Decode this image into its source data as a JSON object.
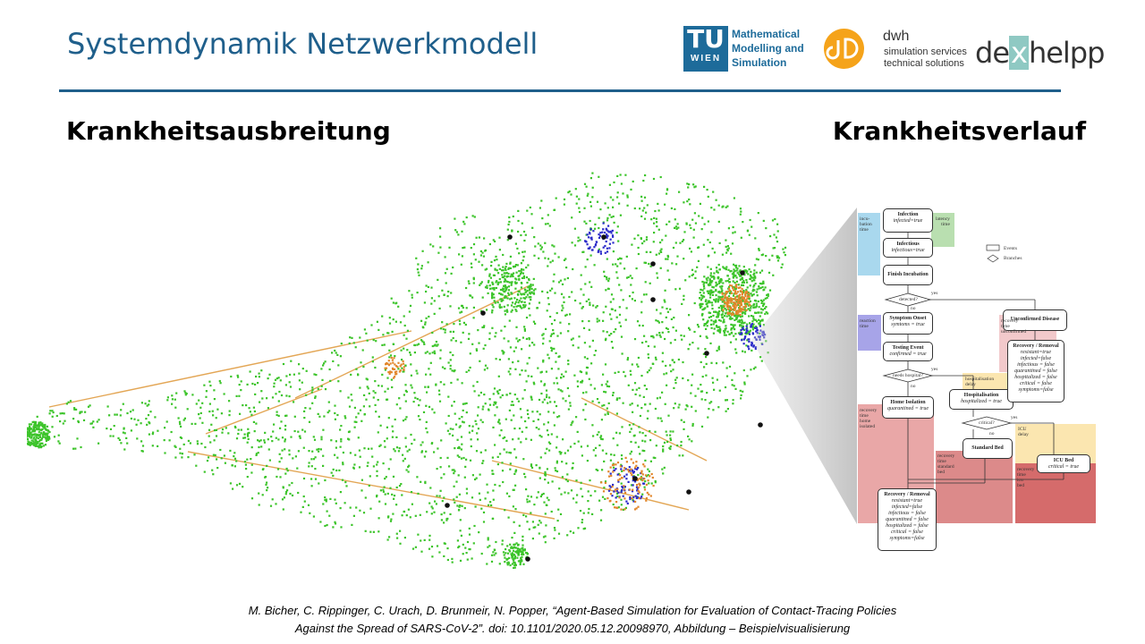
{
  "header": {
    "title": "Systemdynamik Netzwerkmodell",
    "subtitle_left": "Krankheitsausbreitung",
    "subtitle_right": "Krankheitsverlauf"
  },
  "logos": {
    "tu_letters": "TU",
    "tu_wien": "WIEN",
    "tu_dept_line1": "Mathematical",
    "tu_dept_line2": "Modelling and",
    "tu_dept_line3": "Simulation",
    "dwh_name": "dwh",
    "dwh_line1": "simulation services",
    "dwh_line2": "technical solutions",
    "dex_a": "de",
    "dex_x": "x",
    "dex_b": "helpp",
    "colors": {
      "tu_blue": "#1d6b9a",
      "dwh_orange": "#f5a31a",
      "dex_teal": "#8fc9c3"
    }
  },
  "citation": {
    "line1": "M. Bicher, C. Rippinger, C. Urach, D. Brunmeir, N. Popper, “Agent-Based Simulation for Evaluation of Contact-Tracing Policies",
    "line2": "Against the Spread of SARS-CoV-2”. doi: 10.1101/2020.05.12.20098970,  Abbildung – Beispielvisualisierung"
  },
  "flowchart": {
    "legend": {
      "events": "Events",
      "branches": "Branches"
    },
    "nodes": {
      "infection": {
        "title": "Infection",
        "state": "infected=true"
      },
      "infectious": {
        "title": "Infectious",
        "state": "infectious=true"
      },
      "finish_incubation": {
        "title": "Finish Incubation"
      },
      "detected": {
        "title": "detected?"
      },
      "symptom_onset": {
        "title": "Symptom Onset",
        "state": "symtoms = true"
      },
      "testing_event": {
        "title": "Testing Event",
        "state": "confirmed = true"
      },
      "needs_hospital": {
        "title": "needs hospital?"
      },
      "home_isolation": {
        "title": "Home Isolation",
        "state": "quarantined = true"
      },
      "hospitalisation": {
        "title": "Hospitalisation",
        "state": "hospitalized = true"
      },
      "critical": {
        "title": "critical?"
      },
      "standard_bed": {
        "title": "Standard Bed"
      },
      "icu_bed": {
        "title": "ICU Bed",
        "state": "critical = true"
      },
      "unconfirmed": {
        "title": "Unconfirmed Disease"
      },
      "recovery_upper": {
        "title": "Recovery / Removal",
        "lines": [
          "resistant=true",
          "infected=false",
          "infectious = false",
          "quarantined = false",
          "hospitalized = false",
          "critical = false",
          "symptoms=false"
        ]
      },
      "recovery_lower": {
        "title": "Recovery / Removal",
        "lines": [
          "resistant=true",
          "infected=false",
          "infectious = false",
          "quarantined = false",
          "hospitalized = false",
          "critical = false",
          "symptoms=false"
        ]
      }
    },
    "labels": {
      "yes": "yes",
      "no": "no",
      "incubation_time": "incu-\nbation\ntime",
      "latency_time": "latency\ntime",
      "reaction_time": "reaction\ntime",
      "recovery_unconfirmed": "recovery\ntime\nunconfirmed",
      "hospitalisation_delay": "hospitalisation\ndelay",
      "icu_delay": "ICU\ndelay",
      "recovery_home": "recovery\ntime\nhome\nisolated",
      "recovery_standard": "recovery\ntime\nstandard\nbed",
      "recovery_icu": "recovery\ntime\nicu\nbed"
    },
    "zone_colors": {
      "blue": "#a9d8ee",
      "green": "#b9dfb0",
      "purple": "#a7a4e8",
      "pink": "#f2c9cb",
      "yellow": "#fbe6b0",
      "red_light": "#e9a7a7",
      "red_mid": "#dc8a8a",
      "red_dark": "#d56b6b"
    }
  },
  "map": {
    "colors": {
      "healthy": "#3cc42a",
      "infected": "#e2862b",
      "detected": "#2b2bc9",
      "removed": "#111111",
      "link": "#e3a655"
    }
  }
}
